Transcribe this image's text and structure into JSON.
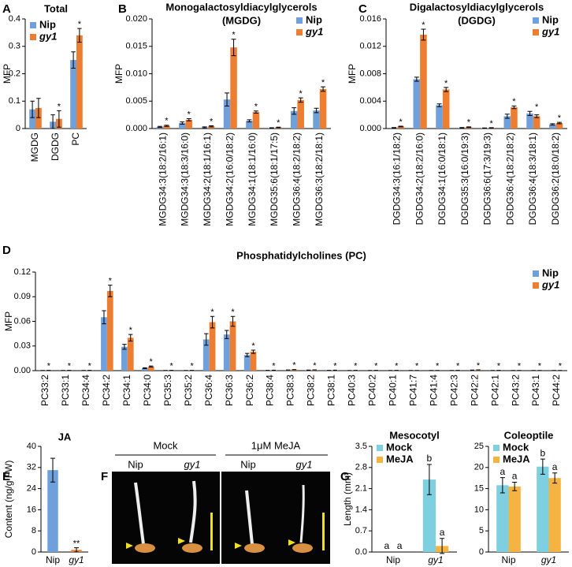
{
  "chart_data": [
    {
      "type": "bar",
      "panel": "A",
      "title": [
        "Total"
      ],
      "y_label": "MFP",
      "legend": "upper left",
      "categories": [
        "MGDG",
        "DGDG",
        "PC"
      ],
      "series": [
        {
          "name": "Nip",
          "color": "#6fa0dc",
          "values": [
            0.07,
            0.025,
            0.25
          ],
          "errors": [
            0.03,
            0.025,
            0.03
          ]
        },
        {
          "name": "gy1",
          "color": "#ed7d31",
          "values": [
            0.075,
            0.035,
            0.34
          ],
          "errors": [
            0.035,
            0.03,
            0.025
          ]
        }
      ],
      "annotations": [
        null,
        "*",
        "*"
      ],
      "ylim": [
        0,
        0.4
      ],
      "yticks": [
        0,
        0.1,
        0.2,
        0.3,
        0.4
      ]
    },
    {
      "type": "bar",
      "panel": "B",
      "title": [
        "Monogalactosyldiacylglycerols",
        "(MGDG)"
      ],
      "y_label": "MFP",
      "legend": "upper right",
      "categories": [
        "MGDG34:3(18:2/16:1)",
        "MGDG34:3(18:3/16:0)",
        "MGDG34:2(18:1/16:1)",
        "MGDG34:2(16:0/18:2)",
        "MGDG34:1(18:1/16:0)",
        "MGDG35:6(18:1/17:5)",
        "MGDG36:4(18:2/18:2)",
        "MGDG36:3(18:2/18:1)"
      ],
      "series": [
        {
          "name": "Nip",
          "color": "#6fa0dc",
          "values": [
            0.0003,
            0.001,
            0.0002,
            0.0053,
            0.0014,
            0.0001,
            0.0032,
            0.0033
          ],
          "errors": [
            0.0001,
            0.0002,
            0.0001,
            0.0012,
            0.0002,
            5e-05,
            0.0006,
            0.0004
          ]
        },
        {
          "name": "gy1",
          "color": "#ed7d31",
          "values": [
            0.0005,
            0.0016,
            0.0004,
            0.0148,
            0.003,
            0.0002,
            0.0052,
            0.0072
          ],
          "errors": [
            0.0001,
            0.0002,
            0.0001,
            0.0015,
            0.0002,
            5e-05,
            0.0004,
            0.0004
          ]
        }
      ],
      "annotations": [
        "*",
        "*",
        "*",
        "*",
        "*",
        "*",
        "*",
        "*"
      ],
      "ylim": [
        0,
        0.02
      ],
      "yticks": [
        {
          "value": 0,
          "label": "0.000"
        },
        {
          "value": 0.005,
          "label": "0.005"
        },
        {
          "value": 0.01,
          "label": "0.010"
        },
        {
          "value": 0.015,
          "label": "0.015"
        },
        {
          "value": 0.02,
          "label": "0.020"
        }
      ]
    },
    {
      "type": "bar",
      "panel": "C",
      "title": [
        "Digalactosyldiacylglycerols",
        "(DGDG)"
      ],
      "y_label": "MFP",
      "legend": "upper right",
      "categories": [
        "DGDG34:3(16:1/18:2)",
        "DGDG34:2(18:2/16:0)",
        "DGDG34:1(16:0/18:1)",
        "DGDG35:3(16:0/19:3)",
        "DGDG36:6(17:3/19:3)",
        "DGDG36:4(18:2/18:2)",
        "DGDG36:4(18:3/18:1)",
        "DGDG36:2(18:0/18:2)"
      ],
      "series": [
        {
          "name": "Nip",
          "color": "#6fa0dc",
          "values": [
            0.0001,
            0.0072,
            0.0034,
            0.0001,
            5e-05,
            0.0018,
            0.0022,
            0.0006
          ],
          "errors": [
            5e-05,
            0.0003,
            0.0002,
            5e-05,
            3e-05,
            0.0003,
            0.0003,
            0.0001
          ]
        },
        {
          "name": "gy1",
          "color": "#ed7d31",
          "values": [
            0.0003,
            0.0137,
            0.0057,
            0.0002,
            0.0001,
            0.0031,
            0.0018,
            0.0008
          ],
          "errors": [
            5e-05,
            0.0008,
            0.0003,
            5e-05,
            3e-05,
            0.0002,
            0.0002,
            0.0001
          ]
        }
      ],
      "annotations": [
        "*",
        "*",
        "*",
        "*",
        "*",
        "*",
        "*",
        "*"
      ],
      "ylim": [
        0,
        0.016
      ],
      "yticks": [
        {
          "value": 0,
          "label": "0.000"
        },
        {
          "value": 0.004,
          "label": "0.004"
        },
        {
          "value": 0.008,
          "label": "0.008"
        },
        {
          "value": 0.012,
          "label": "0.012"
        },
        {
          "value": 0.016,
          "label": "0.016"
        }
      ]
    },
    {
      "type": "bar",
      "panel": "D",
      "title": [
        "Phosphatidylcholines (PC)"
      ],
      "y_label": "MFP",
      "legend": "upper right",
      "categories": [
        "PC33:2",
        "PC33:1",
        "PC34:4",
        "PC34:2",
        "PC34:1",
        "PC34:0",
        "PC35:3",
        "PC35:2",
        "PC36:4",
        "PC36:3",
        "PC36:2",
        "PC38:4",
        "PC38:3",
        "PC38:2",
        "PC38:1",
        "PC40:3",
        "PC40:2",
        "PC40:1",
        "PC41:7",
        "PC41:4",
        "PC42:3",
        "PC42:2",
        "PC42:1",
        "PC43:2",
        "PC43:1",
        "PC44:2"
      ],
      "series": [
        {
          "name": "Nip",
          "color": "#6fa0dc",
          "values": [
            0.0002,
            0.0002,
            0.0002,
            0.065,
            0.029,
            0.003,
            0.0002,
            0.0002,
            0.038,
            0.044,
            0.019,
            0.0003,
            0.0008,
            0.0006,
            0.0003,
            0.0002,
            0.0002,
            0.0002,
            0.0001,
            0.0001,
            0.0002,
            0.0006,
            0.0002,
            0.0001,
            0.0001,
            0.0001
          ],
          "errors": [
            0.0001,
            0.0001,
            0.0001,
            0.008,
            0.003,
            0.0005,
            0.0001,
            0.0001,
            0.007,
            0.005,
            0.002,
            0.0001,
            0.0001,
            0.0001,
            0.0001,
            0.0001,
            0.0001,
            0.0001,
            0.0001,
            0.0001,
            0.0001,
            0.0001,
            0.0001,
            0.0001,
            0.0001,
            0.0001
          ]
        },
        {
          "name": "gy1",
          "color": "#ed7d31",
          "values": [
            0.0003,
            0.0003,
            0.0003,
            0.097,
            0.04,
            0.005,
            0.0003,
            0.0003,
            0.059,
            0.06,
            0.023,
            0.0005,
            0.0012,
            0.0009,
            0.0005,
            0.0003,
            0.0003,
            0.0003,
            0.0002,
            0.0002,
            0.0003,
            0.0009,
            0.0003,
            0.0002,
            0.0002,
            0.0002
          ],
          "errors": [
            0.0001,
            0.0001,
            0.0001,
            0.007,
            0.004,
            0.0007,
            0.0001,
            0.0001,
            0.007,
            0.006,
            0.002,
            0.0001,
            0.0001,
            0.0001,
            0.0001,
            0.0001,
            0.0001,
            0.0001,
            0.0001,
            0.0001,
            0.0001,
            0.0001,
            0.0001,
            0.0001,
            0.0001,
            0.0001
          ]
        }
      ],
      "annotations": [
        "*",
        "*",
        "*",
        "*",
        "*",
        "*",
        "*",
        "*",
        "*",
        "*",
        "*",
        "*",
        "*",
        "*",
        "*",
        "*",
        "*",
        "*",
        "*",
        "*",
        "*",
        "*",
        "*",
        "*",
        "*",
        "*"
      ],
      "ylim": [
        0,
        0.12
      ],
      "yticks": [
        {
          "value": 0,
          "label": "0.00"
        },
        {
          "value": 0.03,
          "label": "0.03"
        },
        {
          "value": 0.06,
          "label": "0.06"
        },
        {
          "value": 0.09,
          "label": "0.09"
        },
        {
          "value": 0.12,
          "label": "0.12"
        }
      ]
    },
    {
      "type": "bar",
      "panel": "E",
      "title": [
        "JA"
      ],
      "y_label": "Content (ng/g FW)",
      "categories": [
        "Nip",
        "gy1"
      ],
      "values": [
        31,
        0.8
      ],
      "errors": [
        4.5,
        0.8
      ],
      "colors": [
        "#6fa0dc",
        "#ed7d31"
      ],
      "annotations": [
        null,
        "**"
      ],
      "ylim": [
        0,
        40
      ],
      "yticks": [
        0,
        8,
        16,
        24,
        32,
        40
      ]
    },
    {
      "type": "bar",
      "panel": "G",
      "title": [
        "Mesocotyl"
      ],
      "y_label": "Length (mm)",
      "legend": "upper left",
      "categories": [
        "Nip",
        "gy1"
      ],
      "series": [
        {
          "name": "Mock",
          "color": "#7ecfe0",
          "values": [
            0,
            2.4
          ],
          "errors": [
            0,
            0.5
          ],
          "labels": [
            "a",
            "b"
          ]
        },
        {
          "name": "MeJA",
          "color": "#f5b342",
          "values": [
            0,
            0.2
          ],
          "errors": [
            0,
            0.25
          ],
          "labels": [
            "a",
            "a"
          ]
        }
      ],
      "ylim": [
        0,
        3.5
      ],
      "yticks": [
        {
          "value": 0,
          "label": "0.0"
        },
        {
          "value": 0.7,
          "label": "0.7"
        },
        {
          "value": 1.4,
          "label": "1.4"
        },
        {
          "value": 2.1,
          "label": "2.1"
        },
        {
          "value": 2.8,
          "label": "2.8"
        },
        {
          "value": 3.5,
          "label": "3.5"
        }
      ]
    },
    {
      "type": "bar",
      "title": [
        "Coleoptile"
      ],
      "legend": "upper left",
      "categories": [
        "Nip",
        "gy1"
      ],
      "series": [
        {
          "name": "Mock",
          "color": "#7ecfe0",
          "values": [
            15.8,
            20.2
          ],
          "errors": [
            1.8,
            1.8
          ],
          "labels": [
            "a",
            "b"
          ]
        },
        {
          "name": "MeJA",
          "color": "#f5b342",
          "values": [
            15.5,
            17.5
          ],
          "errors": [
            1,
            1.2
          ],
          "labels": [
            "a",
            "a"
          ]
        }
      ],
      "ylim": [
        0,
        25
      ],
      "yticks": [
        0,
        5,
        10,
        15,
        20,
        25
      ]
    }
  ],
  "photo": {
    "panel": "F",
    "groups": [
      {
        "label": "Mock",
        "columns": [
          "Nip",
          "gy1"
        ]
      },
      {
        "label": "1μM MeJA",
        "columns": [
          "Nip",
          "gy1"
        ]
      }
    ]
  }
}
